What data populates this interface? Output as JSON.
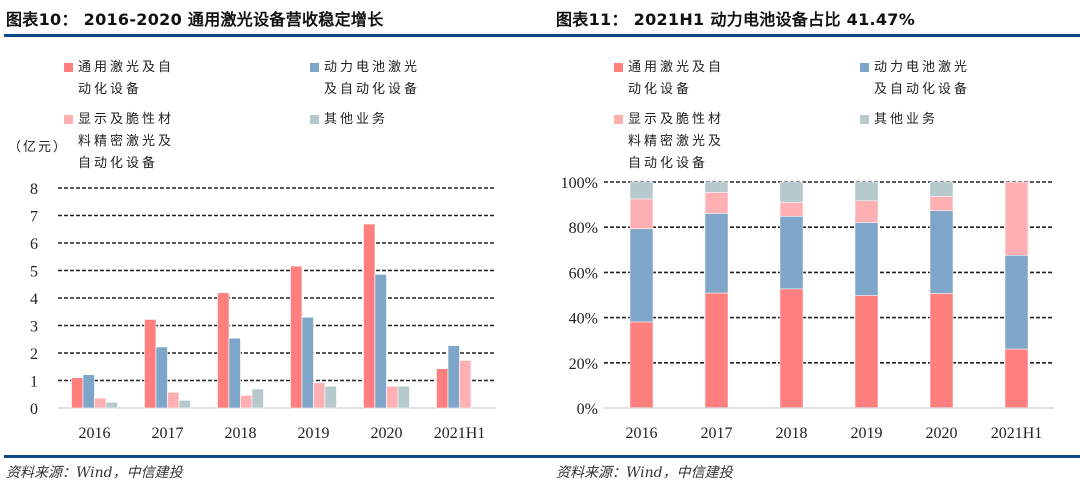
{
  "page": {
    "left_title": "图表10： 2016-2020 通用激光设备营收稳定增长",
    "right_title": "图表11： 2021H1 动力电池设备占比 41.47%",
    "left_source": "资料来源：Wind，中信建投",
    "right_source": "资料来源：Wind，中信建投",
    "colors": {
      "general_laser": "#ff7f7f",
      "power_battery": "#7fa6c9",
      "display": "#ffb0b3",
      "other": "#b6c9cd",
      "rule": "#0d4a86",
      "grid": "#222222",
      "axis": "#d9d9d9"
    }
  },
  "chart_data": [
    {
      "type": "bar",
      "title": "2016-2020 通用激光设备营收稳定增长",
      "ylabel": "（亿元）",
      "xlabel": "",
      "categories": [
        "2016",
        "2017",
        "2018",
        "2019",
        "2020",
        "2021H1"
      ],
      "ylim": [
        0,
        8
      ],
      "yticks": [
        0,
        1,
        2,
        3,
        4,
        5,
        6,
        7,
        8
      ],
      "ytick_labels": [
        "0",
        "1",
        "2",
        "3",
        "4",
        "5",
        "6",
        "7",
        "8"
      ],
      "grid": true,
      "grid_style": "dashed",
      "legend_position": "top",
      "series": [
        {
          "name": "通用激光及自动化设备",
          "color": "#ff7f7f",
          "values": [
            1.1,
            3.22,
            4.19,
            5.16,
            6.69,
            1.43
          ]
        },
        {
          "name": "动力电池激光及自动化设备",
          "color": "#7fa6c9",
          "values": [
            1.21,
            2.22,
            2.54,
            3.3,
            4.86,
            2.27
          ]
        },
        {
          "name": "显示及脆性材料精密激光及自动化设备",
          "color": "#ffb0b3",
          "values": [
            0.36,
            0.57,
            0.46,
            0.92,
            0.79,
            1.73
          ]
        },
        {
          "name": "其他业务",
          "color": "#b6c9cd",
          "values": [
            0.21,
            0.28,
            0.69,
            0.79,
            0.79,
            0
          ]
        }
      ]
    },
    {
      "type": "bar",
      "stacked": true,
      "title": "2021H1 动力电池设备占比 41.47%",
      "ylabel": "",
      "xlabel": "",
      "categories": [
        "2016",
        "2017",
        "2018",
        "2019",
        "2020",
        "2021H1"
      ],
      "ylim": [
        0,
        100
      ],
      "yticks": [
        0,
        20,
        40,
        60,
        80,
        100
      ],
      "ytick_labels": [
        "0%",
        "20%",
        "40%",
        "60%",
        "80%",
        "100%"
      ],
      "grid": true,
      "grid_style": "dashed",
      "legend_position": "top",
      "series": [
        {
          "name": "通用激光及自动化设备",
          "color": "#ff7f7f",
          "values": [
            38.1,
            50.9,
            52.7,
            49.8,
            50.7,
            26.1
          ]
        },
        {
          "name": "动力电池激光及自动化设备",
          "color": "#7fa6c9",
          "values": [
            41.2,
            35.2,
            32.1,
            32.3,
            36.7,
            41.47
          ]
        },
        {
          "name": "显示及脆性材料精密激光及自动化设备",
          "color": "#ffb0b3",
          "values": [
            13.2,
            9.3,
            6.2,
            9.6,
            6.2,
            32.4
          ]
        },
        {
          "name": "其他业务",
          "color": "#b6c9cd",
          "values": [
            7.5,
            4.6,
            9.0,
            8.3,
            6.4,
            0
          ]
        }
      ]
    }
  ],
  "legend": {
    "items": [
      {
        "label": "通用激光及自动化设备",
        "color": "#ff7f7f"
      },
      {
        "label": "动力电池激光及自动化设备",
        "color": "#7fa6c9"
      },
      {
        "label": "显示及脆性材料精密激光及自动化设备",
        "color": "#ffb0b3"
      },
      {
        "label": "其他业务",
        "color": "#b6c9cd"
      }
    ]
  }
}
